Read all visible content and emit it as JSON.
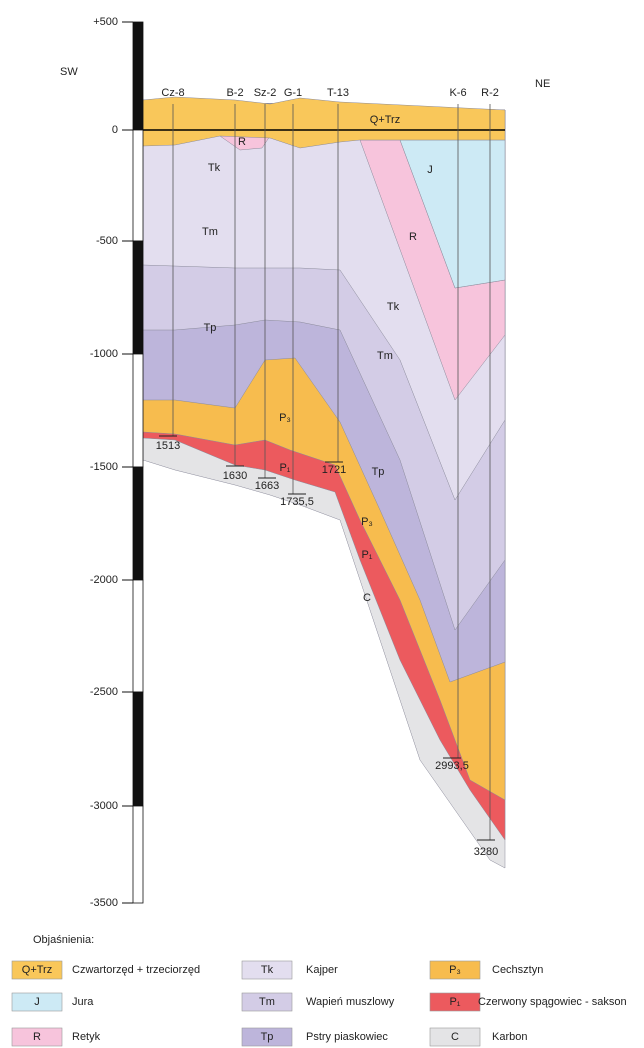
{
  "scale": {
    "labels": [
      "+500",
      "0",
      "-500",
      "-1000",
      "-1500",
      "-2000",
      "-2500",
      "-3000",
      "-3500"
    ]
  },
  "directions": {
    "left": "SW",
    "right": "NE"
  },
  "wells": [
    {
      "name": "Cz-8",
      "depth": "1513"
    },
    {
      "name": "B-2",
      "depth": "1630"
    },
    {
      "name": "Sz-2",
      "depth": "1663"
    },
    {
      "name": "G-1",
      "depth": "1735,5"
    },
    {
      "name": "T-13",
      "depth": "1721"
    },
    {
      "name": "K-6",
      "depth": "2993,5"
    },
    {
      "name": "R-2",
      "depth": "3280"
    }
  ],
  "layer_labels": [
    "R",
    "Tk",
    "Tm",
    "Tp",
    "P₃",
    "P₁",
    "Q+Trz",
    "J",
    "R",
    "Tk",
    "Tm",
    "Tp",
    "P₃",
    "P₁",
    "C"
  ],
  "legend": {
    "title": "Objaśnienia:",
    "items": [
      {
        "symbol": "Q+Trz",
        "name": "Czwartorzęd + trzeciorzęd"
      },
      {
        "symbol": "Tk",
        "name": "Kajper"
      },
      {
        "symbol": "P₃",
        "name": "Cechsztyn"
      },
      {
        "symbol": "J",
        "name": "Jura"
      },
      {
        "symbol": "Tm",
        "name": "Wapień muszlowy"
      },
      {
        "symbol": "P₁",
        "name": "Czerwony spągowiec - sakson"
      },
      {
        "symbol": "R",
        "name": "Retyk"
      },
      {
        "symbol": "Tp",
        "name": "Pstry piaskowiec"
      },
      {
        "symbol": "C",
        "name": "Karbon"
      }
    ]
  }
}
